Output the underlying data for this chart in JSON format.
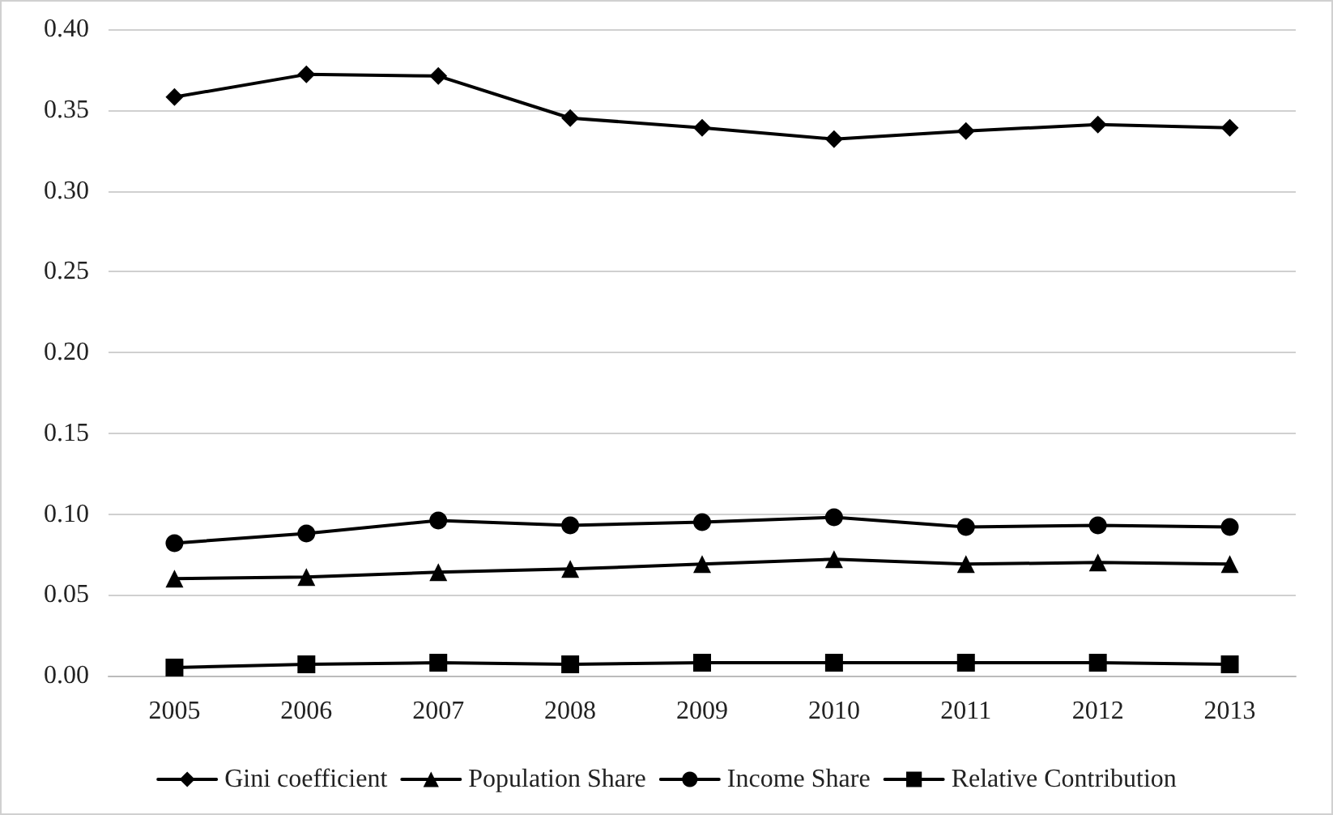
{
  "chart_data": {
    "type": "line",
    "categories": [
      "2005",
      "2006",
      "2007",
      "2008",
      "2009",
      "2010",
      "2011",
      "2012",
      "2013"
    ],
    "series": [
      {
        "name": "Gini coefficient",
        "color": "#000000",
        "marker": "diamond",
        "values": [
          0.358,
          0.372,
          0.371,
          0.345,
          0.339,
          0.332,
          0.337,
          0.341,
          0.339
        ]
      },
      {
        "name": "Population Share",
        "color": "#000000",
        "marker": "triangle",
        "values": [
          0.06,
          0.061,
          0.064,
          0.066,
          0.069,
          0.072,
          0.069,
          0.07,
          0.069
        ]
      },
      {
        "name": "Income Share",
        "color": "#000000",
        "marker": "circle",
        "values": [
          0.082,
          0.088,
          0.096,
          0.093,
          0.095,
          0.098,
          0.092,
          0.093,
          0.092
        ]
      },
      {
        "name": "Relative Contribution",
        "color": "#000000",
        "marker": "square",
        "values": [
          0.005,
          0.007,
          0.008,
          0.007,
          0.008,
          0.008,
          0.008,
          0.008,
          0.007
        ]
      }
    ],
    "ylim": [
      0,
      0.4
    ],
    "yticks": [
      {
        "value": 0,
        "label": "0.00"
      },
      {
        "value": 0.05,
        "label": "0.05"
      },
      {
        "value": 0.1,
        "label": "0.10"
      },
      {
        "value": 0.15,
        "label": "0.15"
      },
      {
        "value": 0.2,
        "label": "0.20"
      },
      {
        "value": 0.25,
        "label": "0.25"
      },
      {
        "value": 0.3,
        "label": "0.30"
      },
      {
        "value": 0.35,
        "label": "0.35"
      },
      {
        "value": 0.4,
        "label": "0.40"
      }
    ],
    "grid": "y",
    "legend": "bottom",
    "line_style": "solid"
  }
}
